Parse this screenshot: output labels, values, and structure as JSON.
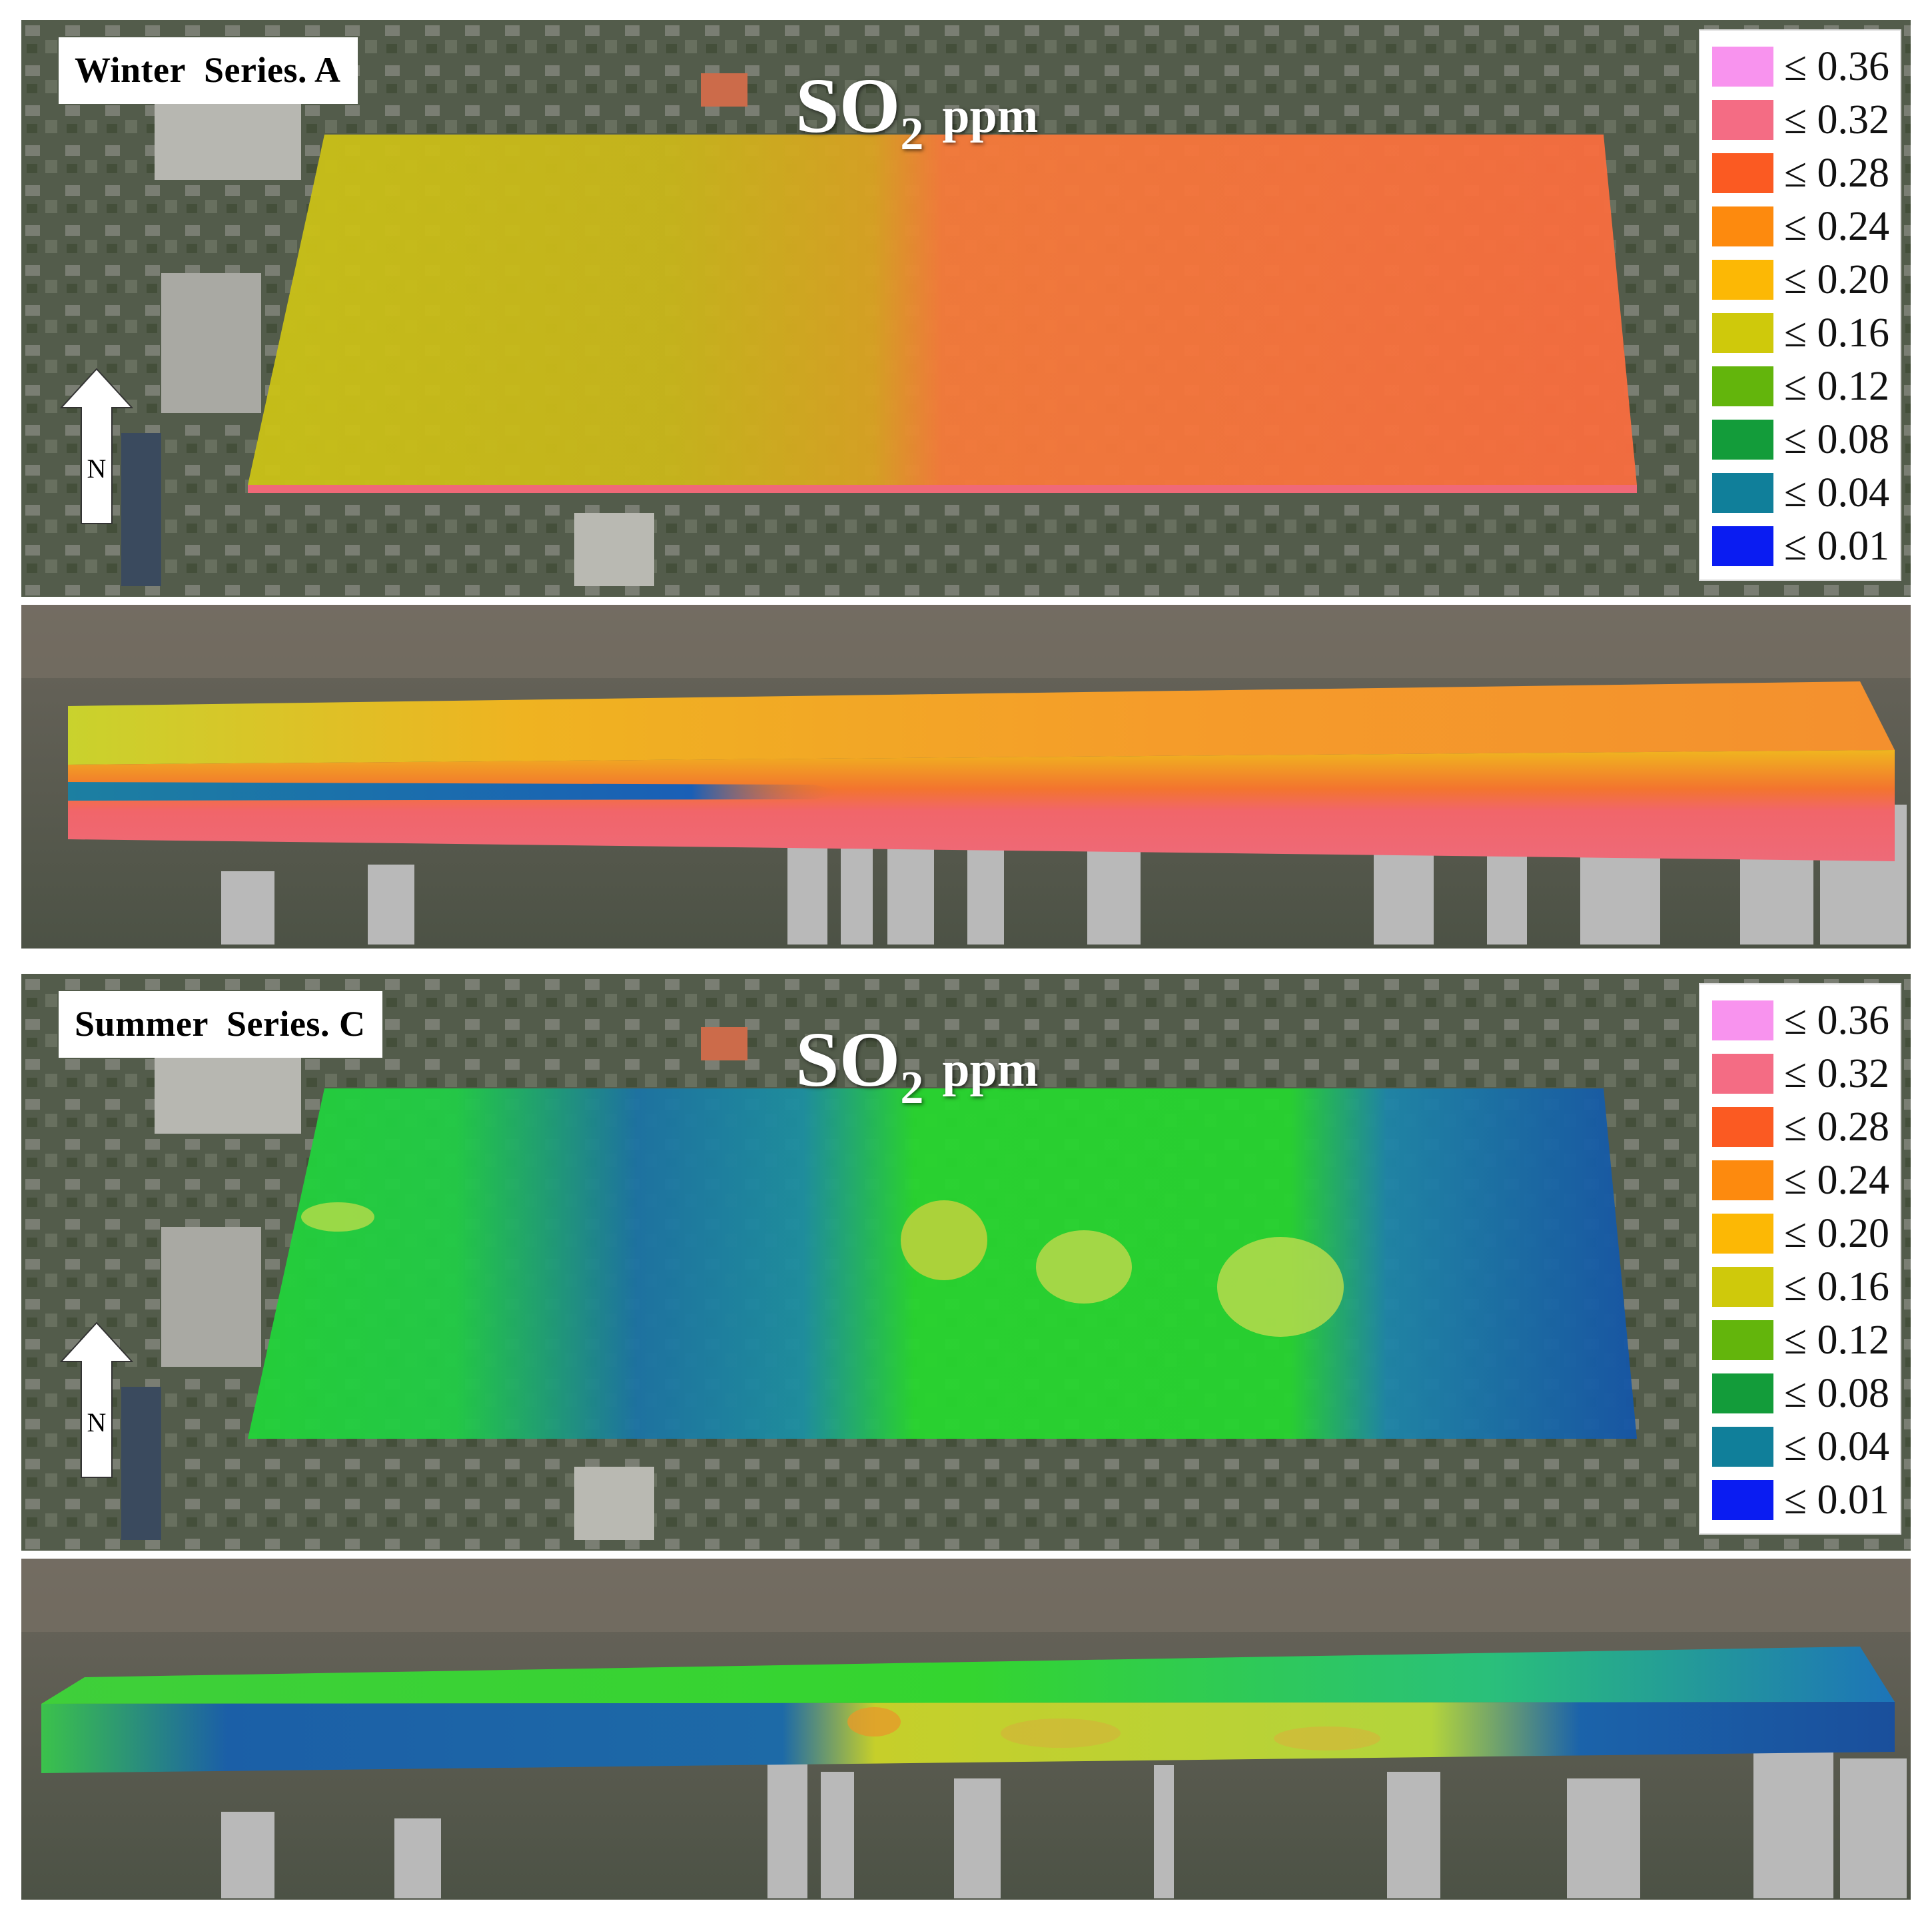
{
  "panels": [
    {
      "series_label": "Winter  Series. A",
      "title": {
        "main": "SO",
        "subscript": "2",
        "unit": "ppm"
      },
      "legend": [
        {
          "label": "≤ 0.36",
          "color": "#f893ee"
        },
        {
          "label": "≤ 0.32",
          "color": "#f46c84"
        },
        {
          "label": "≤ 0.28",
          "color": "#fb5a22"
        },
        {
          "label": "≤ 0.24",
          "color": "#fd8a0e"
        },
        {
          "label": "≤ 0.20",
          "color": "#fcb805"
        },
        {
          "label": "≤ 0.16",
          "color": "#cfc90b"
        },
        {
          "label": "≤ 0.12",
          "color": "#63b50c"
        },
        {
          "label": "≤ 0.08",
          "color": "#139c3a"
        },
        {
          "label": "≤ 0.04",
          "color": "#107f9a"
        },
        {
          "label": "≤ 0.01",
          "color": "#0a1cf2"
        }
      ],
      "north_label": "N"
    },
    {
      "series_label": "Summer  Series. C",
      "title": {
        "main": "SO",
        "subscript": "2",
        "unit": "ppm"
      },
      "legend": [
        {
          "label": "≤ 0.36",
          "color": "#f893ee"
        },
        {
          "label": "≤ 0.32",
          "color": "#f46c84"
        },
        {
          "label": "≤ 0.28",
          "color": "#fb5a22"
        },
        {
          "label": "≤ 0.24",
          "color": "#fd8a0e"
        },
        {
          "label": "≤ 0.20",
          "color": "#fcb805"
        },
        {
          "label": "≤ 0.16",
          "color": "#cfc90b"
        },
        {
          "label": "≤ 0.12",
          "color": "#63b50c"
        },
        {
          "label": "≤ 0.08",
          "color": "#139c3a"
        },
        {
          "label": "≤ 0.04",
          "color": "#107f9a"
        },
        {
          "label": "≤ 0.01",
          "color": "#0a1cf2"
        }
      ],
      "north_label": "N"
    }
  ]
}
